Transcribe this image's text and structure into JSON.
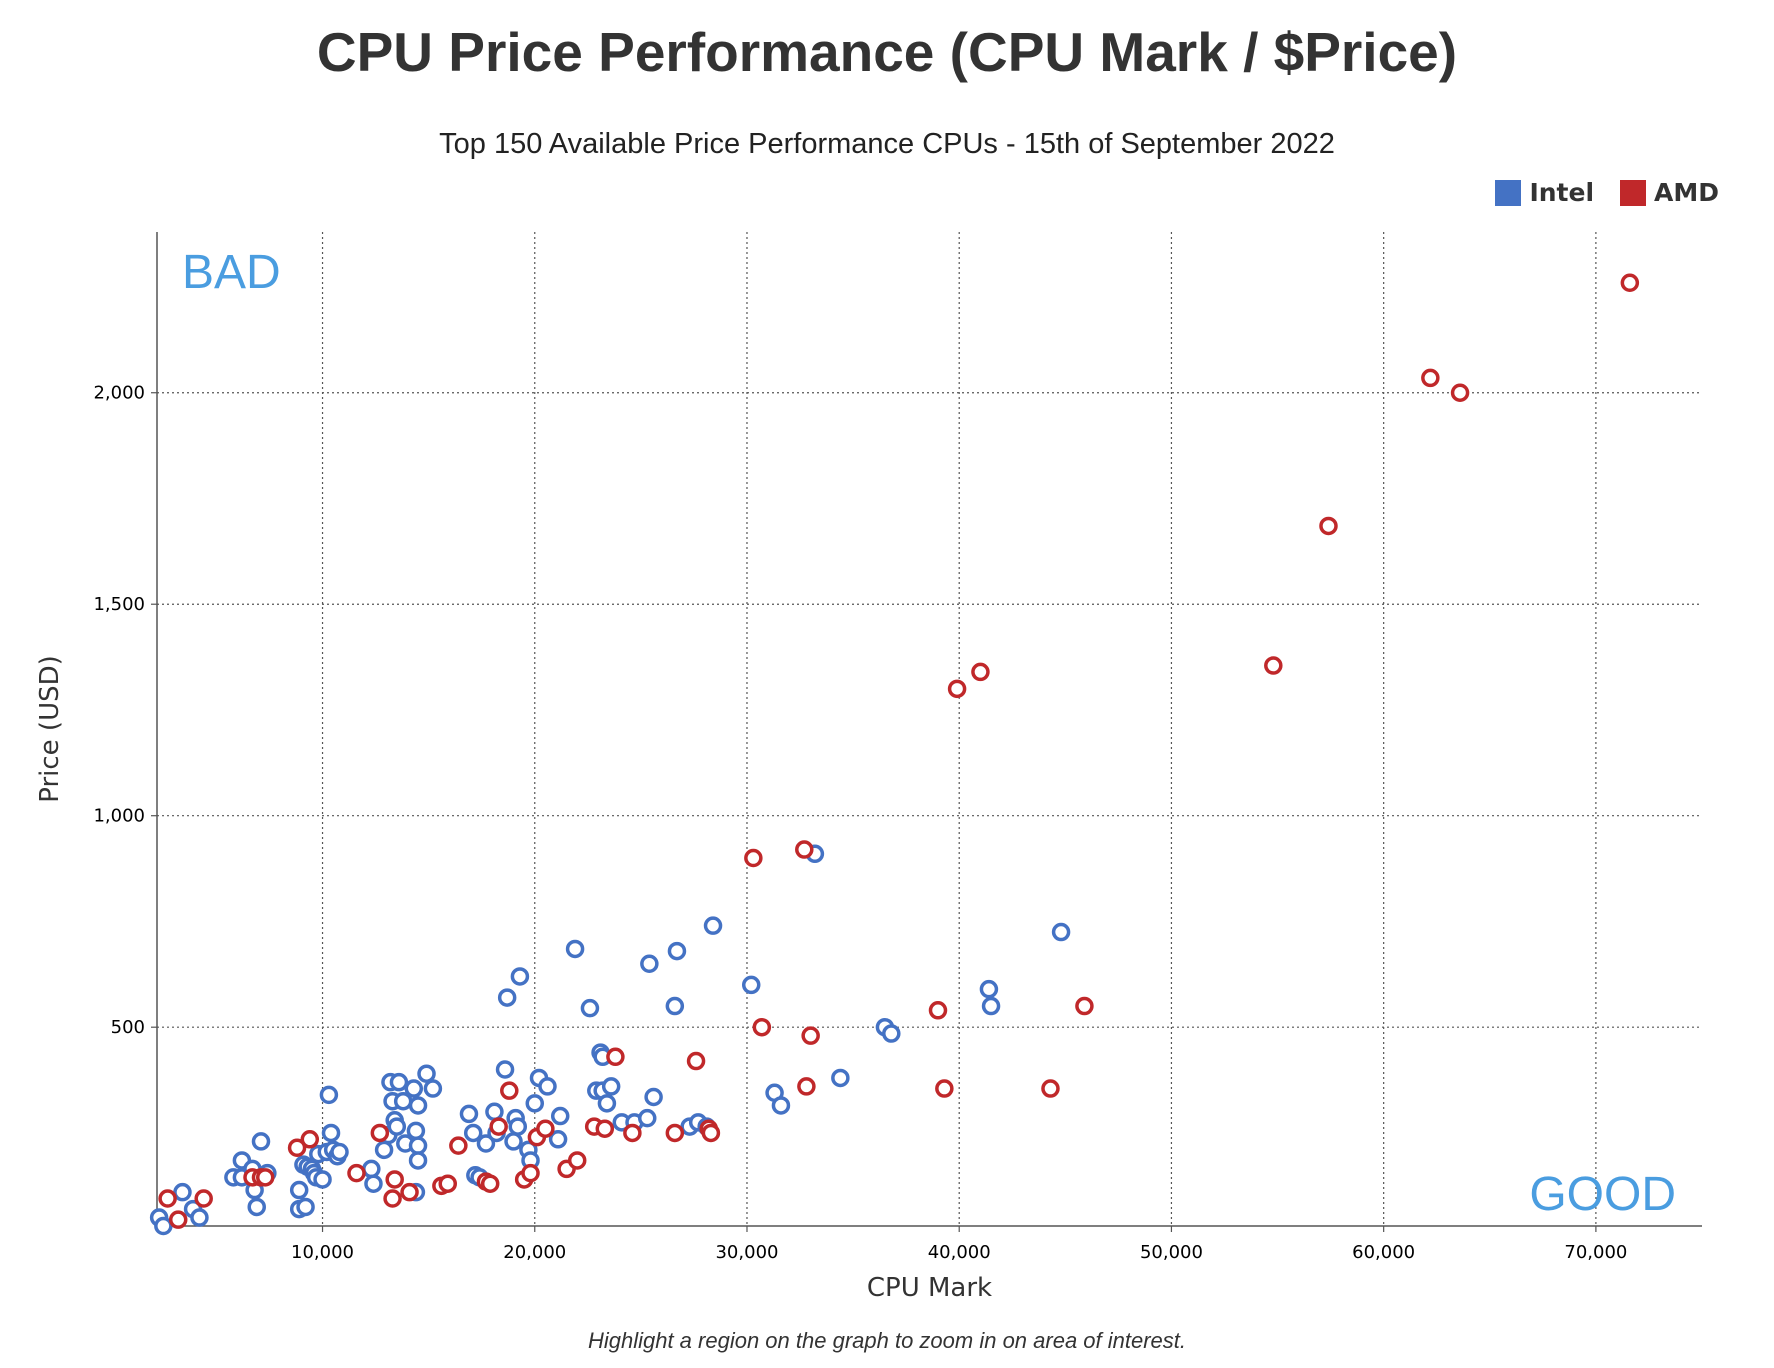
{
  "header": {
    "title": "CPU Price Performance (CPU Mark / $Price)",
    "subtitle": "Top 150 Available Price Performance CPUs - 15th of September 2022"
  },
  "legend": [
    {
      "label": "Intel",
      "color": "#4472c4"
    },
    {
      "label": "AMD",
      "color": "#c0282a"
    }
  ],
  "annotations": {
    "bad": "BAD",
    "good": "GOOD"
  },
  "footnote": "Highlight a region on the graph to zoom in on area of interest.",
  "chart_data": {
    "type": "scatter",
    "xlabel": "CPU Mark",
    "ylabel": "Price (USD)",
    "xlim": [
      2200,
      75000
    ],
    "ylim": [
      30,
      2380
    ],
    "xticks": [
      10000,
      20000,
      30000,
      40000,
      50000,
      60000,
      70000
    ],
    "yticks": [
      500,
      1000,
      1500,
      2000
    ],
    "xtick_labels": [
      "10,000",
      "20,000",
      "30,000",
      "40,000",
      "50,000",
      "60,000",
      "70,000"
    ],
    "ytick_labels": [
      "500",
      "1,000",
      "1,500",
      "2,000"
    ],
    "grid": "dotted",
    "legend_position": "top-right",
    "series": [
      {
        "name": "Intel",
        "color": "#4472c4",
        "points": [
          [
            2300,
            50
          ],
          [
            2500,
            30
          ],
          [
            3400,
            110
          ],
          [
            3900,
            70
          ],
          [
            4200,
            50
          ],
          [
            5800,
            145
          ],
          [
            6200,
            185
          ],
          [
            6200,
            145
          ],
          [
            6700,
            165
          ],
          [
            6800,
            115
          ],
          [
            6900,
            75
          ],
          [
            7100,
            230
          ],
          [
            7400,
            155
          ],
          [
            8900,
            115
          ],
          [
            8900,
            70
          ],
          [
            9100,
            175
          ],
          [
            9200,
            75
          ],
          [
            9300,
            170
          ],
          [
            9500,
            165
          ],
          [
            9600,
            155
          ],
          [
            9700,
            145
          ],
          [
            9800,
            200
          ],
          [
            10000,
            140
          ],
          [
            10200,
            205
          ],
          [
            10300,
            340
          ],
          [
            10400,
            250
          ],
          [
            10500,
            210
          ],
          [
            10700,
            195
          ],
          [
            10800,
            205
          ],
          [
            12300,
            165
          ],
          [
            12400,
            130
          ],
          [
            12900,
            210
          ],
          [
            13100,
            245
          ],
          [
            13200,
            370
          ],
          [
            13300,
            325
          ],
          [
            13400,
            280
          ],
          [
            13500,
            265
          ],
          [
            13600,
            370
          ],
          [
            13800,
            325
          ],
          [
            13900,
            225
          ],
          [
            14300,
            355
          ],
          [
            14400,
            255
          ],
          [
            14400,
            110
          ],
          [
            14500,
            315
          ],
          [
            14500,
            220
          ],
          [
            14500,
            185
          ],
          [
            14900,
            390
          ],
          [
            15200,
            355
          ],
          [
            16900,
            295
          ],
          [
            17100,
            250
          ],
          [
            17200,
            150
          ],
          [
            17400,
            145
          ],
          [
            17700,
            225
          ],
          [
            18100,
            300
          ],
          [
            18200,
            250
          ],
          [
            18600,
            400
          ],
          [
            18700,
            570
          ],
          [
            19000,
            230
          ],
          [
            19100,
            285
          ],
          [
            19200,
            265
          ],
          [
            19300,
            620
          ],
          [
            19700,
            210
          ],
          [
            19800,
            185
          ],
          [
            20000,
            320
          ],
          [
            20200,
            380
          ],
          [
            20600,
            360
          ],
          [
            21100,
            235
          ],
          [
            21200,
            290
          ],
          [
            21900,
            685
          ],
          [
            22600,
            545
          ],
          [
            22900,
            350
          ],
          [
            23100,
            440
          ],
          [
            23200,
            430
          ],
          [
            23200,
            350
          ],
          [
            23400,
            320
          ],
          [
            23600,
            360
          ],
          [
            24100,
            275
          ],
          [
            24700,
            275
          ],
          [
            25300,
            285
          ],
          [
            25400,
            650
          ],
          [
            25600,
            335
          ],
          [
            26600,
            550
          ],
          [
            26700,
            680
          ],
          [
            27300,
            265
          ],
          [
            27700,
            275
          ],
          [
            28100,
            265
          ],
          [
            28400,
            740
          ],
          [
            30200,
            600
          ],
          [
            31300,
            345
          ],
          [
            31600,
            315
          ],
          [
            33200,
            910
          ],
          [
            34400,
            380
          ],
          [
            36500,
            500
          ],
          [
            36800,
            485
          ],
          [
            41400,
            590
          ],
          [
            41500,
            550
          ],
          [
            44800,
            725
          ]
        ]
      },
      {
        "name": "AMD",
        "color": "#c0282a",
        "points": [
          [
            2700,
            95
          ],
          [
            3200,
            45
          ],
          [
            4400,
            95
          ],
          [
            6700,
            145
          ],
          [
            7100,
            145
          ],
          [
            7300,
            145
          ],
          [
            8800,
            215
          ],
          [
            9400,
            235
          ],
          [
            11600,
            155
          ],
          [
            12700,
            250
          ],
          [
            13300,
            95
          ],
          [
            13400,
            140
          ],
          [
            14100,
            110
          ],
          [
            15600,
            125
          ],
          [
            15900,
            130
          ],
          [
            16400,
            220
          ],
          [
            17700,
            135
          ],
          [
            17900,
            130
          ],
          [
            18300,
            265
          ],
          [
            18800,
            350
          ],
          [
            19500,
            140
          ],
          [
            19800,
            155
          ],
          [
            20100,
            240
          ],
          [
            20500,
            260
          ],
          [
            21500,
            165
          ],
          [
            22000,
            185
          ],
          [
            22800,
            265
          ],
          [
            23300,
            260
          ],
          [
            23800,
            430
          ],
          [
            24600,
            250
          ],
          [
            26600,
            250
          ],
          [
            27600,
            420
          ],
          [
            28200,
            260
          ],
          [
            28300,
            250
          ],
          [
            30300,
            900
          ],
          [
            30700,
            500
          ],
          [
            32700,
            920
          ],
          [
            32800,
            360
          ],
          [
            33000,
            480
          ],
          [
            39000,
            540
          ],
          [
            39300,
            355
          ],
          [
            39900,
            1300
          ],
          [
            41000,
            1340
          ],
          [
            44300,
            355
          ],
          [
            45900,
            550
          ],
          [
            54800,
            1355
          ],
          [
            57400,
            1685
          ],
          [
            62200,
            2035
          ],
          [
            63600,
            2000
          ],
          [
            71600,
            2260
          ]
        ]
      }
    ]
  }
}
